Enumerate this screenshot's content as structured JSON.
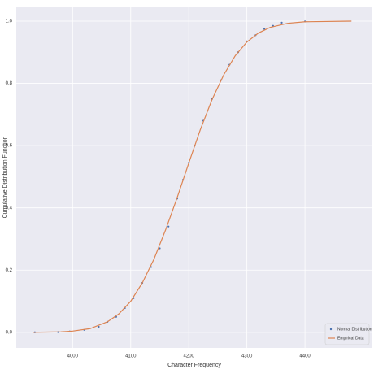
{
  "chart_data": {
    "type": "line",
    "xlabel": "Character Frequency",
    "ylabel": "Cumulative Distribution Function",
    "xlim": [
      3903,
      4516
    ],
    "ylim": [
      -0.05,
      1.047
    ],
    "xticks": [
      4000,
      4100,
      4200,
      4300,
      4400
    ],
    "yticks": [
      {
        "value": 0,
        "label": "0.0"
      },
      0.2,
      0.4,
      0.6,
      0.8,
      {
        "value": 1,
        "label": "1.0"
      }
    ],
    "grid": true,
    "legend": "lower right",
    "series": [
      {
        "name": "Normal Distribution",
        "color": "#4c72b0",
        "mode": "markers",
        "x": [
          3935,
          3975,
          3995,
          4020,
          4045,
          4060,
          4075,
          4090,
          4105,
          4120,
          4135,
          4150,
          4165,
          4180,
          4190,
          4200,
          4210,
          4225,
          4240,
          4255,
          4270,
          4285,
          4300,
          4315,
          4330,
          4345,
          4360,
          4400
        ],
        "values": [
          0.0002,
          0.001,
          0.003,
          0.008,
          0.018,
          0.034,
          0.05,
          0.078,
          0.11,
          0.159,
          0.21,
          0.27,
          0.34,
          0.43,
          0.49,
          0.545,
          0.6,
          0.68,
          0.75,
          0.81,
          0.86,
          0.9,
          0.935,
          0.955,
          0.975,
          0.985,
          0.995,
          0.999
        ]
      },
      {
        "name": "Empirical Data",
        "color": "#dd8452",
        "mode": "line",
        "x": [
          3932,
          3980,
          4000,
          4030,
          4060,
          4080,
          4100,
          4120,
          4140,
          4160,
          4180,
          4200,
          4220,
          4240,
          4260,
          4280,
          4300,
          4320,
          4340,
          4370,
          4400,
          4480
        ],
        "values": [
          0.0002,
          0.0016,
          0.004,
          0.012,
          0.034,
          0.06,
          0.1,
          0.159,
          0.235,
          0.329,
          0.433,
          0.544,
          0.652,
          0.748,
          0.827,
          0.889,
          0.933,
          0.962,
          0.98,
          0.993,
          0.998,
          1.0
        ]
      }
    ]
  }
}
